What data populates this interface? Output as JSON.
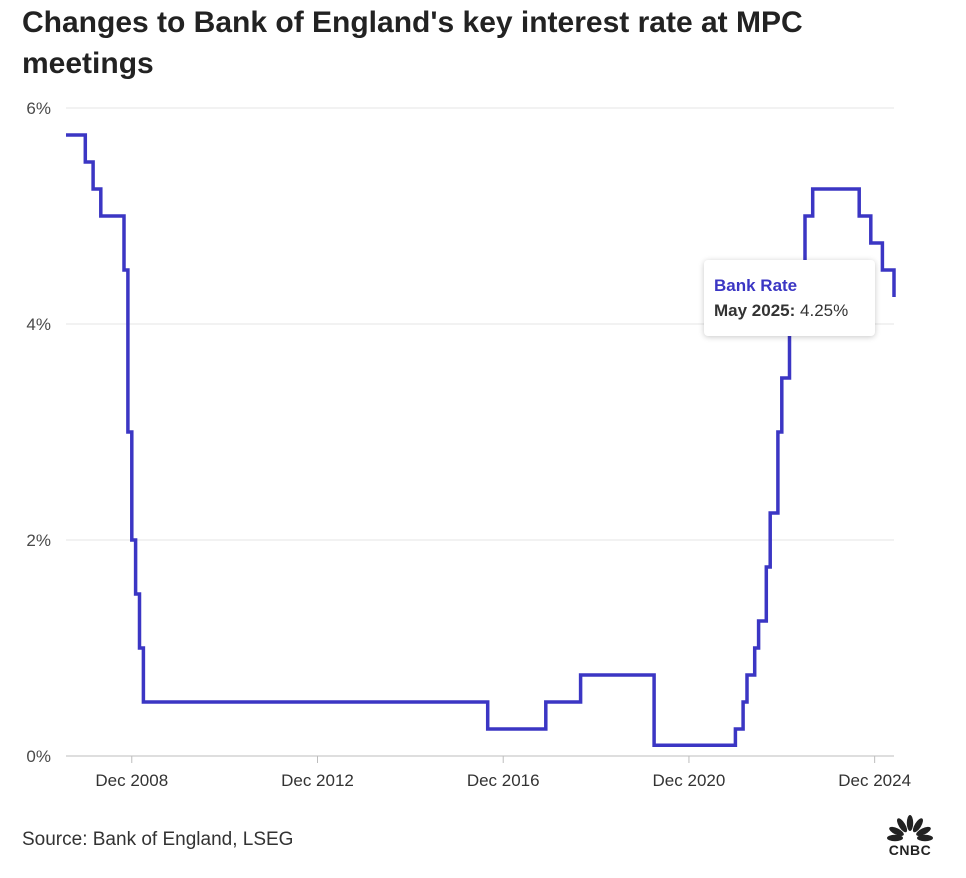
{
  "title": "Changes to Bank of England's key interest rate at MPC meetings",
  "source": "Source: Bank of England, LSEG",
  "logo_text": "CNBC",
  "colors": {
    "series": "#3b36c4",
    "grid": "#e4e4e4",
    "text": "#333333"
  },
  "tooltip": {
    "series": "Bank Rate",
    "date": "May 2025:",
    "value": "4.25%"
  },
  "chart_data": {
    "type": "line",
    "step": true,
    "title": "Changes to Bank of England's key interest rate at MPC meetings",
    "xlabel": "",
    "ylabel": "",
    "grid": true,
    "y_ticks": [
      "0%",
      "2%",
      "4%",
      "6%"
    ],
    "x_ticks": [
      "Dec 2008",
      "Dec 2012",
      "Dec 2016",
      "Dec 2020",
      "Dec 2024"
    ],
    "ylim": [
      0,
      6
    ],
    "xlim": [
      "2007-07",
      "2025-05"
    ],
    "series": [
      {
        "name": "Bank Rate",
        "x": [
          "2007-07",
          "2007-12",
          "2008-02",
          "2008-04",
          "2008-10",
          "2008-11",
          "2008-12",
          "2009-01",
          "2009-02",
          "2009-03",
          "2016-08",
          "2017-11",
          "2018-08",
          "2020-03",
          "2020-03",
          "2021-12",
          "2022-02",
          "2022-03",
          "2022-05",
          "2022-06",
          "2022-08",
          "2022-09",
          "2022-11",
          "2022-12",
          "2023-02",
          "2023-03",
          "2023-05",
          "2023-06",
          "2023-08",
          "2024-08",
          "2024-11",
          "2025-02",
          "2025-05"
        ],
        "values": [
          5.75,
          5.5,
          5.25,
          5.0,
          4.5,
          3.0,
          2.0,
          1.5,
          1.0,
          0.5,
          0.25,
          0.5,
          0.75,
          0.25,
          0.1,
          0.25,
          0.5,
          0.75,
          1.0,
          1.25,
          1.75,
          2.25,
          3.0,
          3.5,
          4.0,
          4.25,
          4.5,
          5.0,
          5.25,
          5.0,
          4.75,
          4.5,
          4.25
        ]
      }
    ]
  }
}
